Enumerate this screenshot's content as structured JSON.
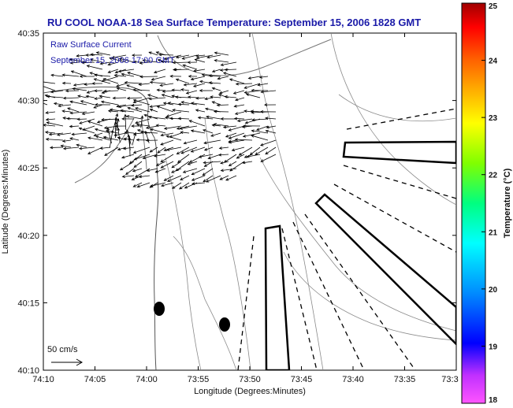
{
  "title": "RU COOL  NOAA-18  Sea Surface Temperature:  September 15, 2006 1828 GMT",
  "annotation": {
    "line1": "Raw Surface Current",
    "line2": "September 15, 2006 17:00 GMT"
  },
  "x_axis": {
    "label": "Longitude (Degrees:Minutes)",
    "ticks": [
      "74:10",
      "74:05",
      "74:00",
      "73:55",
      "73:50",
      "73:45",
      "73:40",
      "73:35",
      "73:3"
    ]
  },
  "y_axis": {
    "label": "Latitude (Degrees:Minutes)",
    "ticks": [
      "40:35",
      "40:30",
      "40:25",
      "40:20",
      "40:15",
      "40:10"
    ]
  },
  "colorbar": {
    "label": "Temperature (°C)",
    "ticks": [
      "25",
      "24",
      "23",
      "22",
      "21",
      "20",
      "19",
      "18"
    ],
    "range": [
      18,
      25
    ],
    "colors": [
      "#ff55ff",
      "#c030ff",
      "#0000ff",
      "#0090ff",
      "#00ffff",
      "#00ff80",
      "#80ff00",
      "#ffff00",
      "#ffb000",
      "#ff6000",
      "#ff0000",
      "#a00000"
    ]
  },
  "scale_vector": {
    "label": "50 cm/s"
  }
}
